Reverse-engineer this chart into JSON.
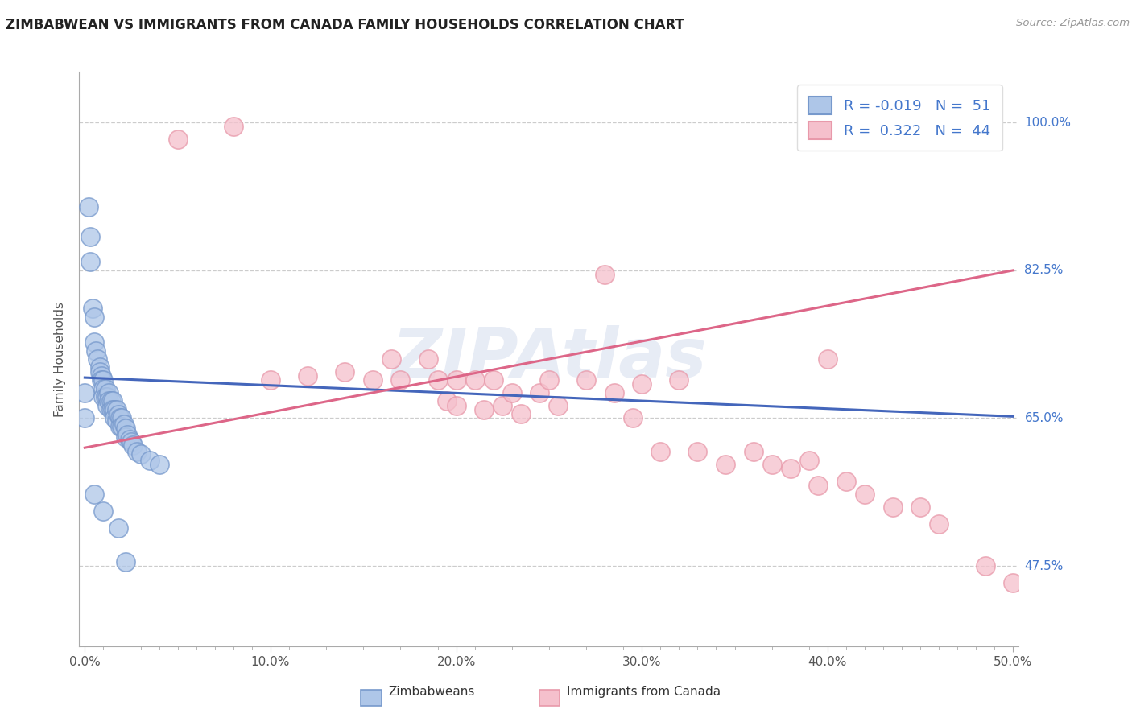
{
  "title": "ZIMBABWEAN VS IMMIGRANTS FROM CANADA FAMILY HOUSEHOLDS CORRELATION CHART",
  "source_text": "Source: ZipAtlas.com",
  "ylabel": "Family Households",
  "xlim": [
    -0.003,
    0.503
  ],
  "ylim": [
    0.38,
    1.06
  ],
  "xtick_labels": [
    "0.0%",
    "",
    "",
    "",
    "",
    "",
    "",
    "",
    "",
    "",
    "10.0%",
    "",
    "",
    "",
    "",
    "",
    "",
    "",
    "",
    "",
    "20.0%",
    "",
    "",
    "",
    "",
    "",
    "",
    "",
    "",
    "",
    "30.0%",
    "",
    "",
    "",
    "",
    "",
    "",
    "",
    "",
    "",
    "40.0%",
    "",
    "",
    "",
    "",
    "",
    "",
    "",
    "",
    "",
    "50.0%"
  ],
  "xtick_values": [
    0.0,
    0.01,
    0.02,
    0.03,
    0.04,
    0.05,
    0.06,
    0.07,
    0.08,
    0.09,
    0.1,
    0.11,
    0.12,
    0.13,
    0.14,
    0.15,
    0.16,
    0.17,
    0.18,
    0.19,
    0.2,
    0.21,
    0.22,
    0.23,
    0.24,
    0.25,
    0.26,
    0.27,
    0.28,
    0.29,
    0.3,
    0.31,
    0.32,
    0.33,
    0.34,
    0.35,
    0.36,
    0.37,
    0.38,
    0.39,
    0.4,
    0.41,
    0.42,
    0.43,
    0.44,
    0.45,
    0.46,
    0.47,
    0.48,
    0.49,
    0.5
  ],
  "xtick_major_labels": [
    "0.0%",
    "10.0%",
    "20.0%",
    "30.0%",
    "40.0%",
    "50.0%"
  ],
  "xtick_major_values": [
    0.0,
    0.1,
    0.2,
    0.3,
    0.4,
    0.5
  ],
  "ytick_labels": [
    "47.5%",
    "65.0%",
    "82.5%",
    "100.0%"
  ],
  "ytick_values": [
    0.475,
    0.65,
    0.825,
    1.0
  ],
  "grid_color": "#cccccc",
  "blue_dot_face": "#aec6e8",
  "blue_dot_edge": "#7799cc",
  "pink_dot_face": "#f5c0cc",
  "pink_dot_edge": "#e899aa",
  "blue_line_color": "#4466bb",
  "pink_line_color": "#dd6688",
  "label_color": "#4477cc",
  "legend_R1": "-0.019",
  "legend_N1": "51",
  "legend_R2": "0.322",
  "legend_N2": "44",
  "watermark": "ZIPAtlas",
  "watermark_color": "#aabbdd",
  "blue_x": [
    0.0,
    0.0,
    0.002,
    0.003,
    0.003,
    0.004,
    0.005,
    0.005,
    0.006,
    0.007,
    0.008,
    0.008,
    0.009,
    0.009,
    0.01,
    0.01,
    0.01,
    0.011,
    0.011,
    0.012,
    0.012,
    0.013,
    0.013,
    0.014,
    0.014,
    0.015,
    0.015,
    0.016,
    0.016,
    0.017,
    0.017,
    0.018,
    0.019,
    0.019,
    0.02,
    0.02,
    0.021,
    0.022,
    0.022,
    0.023,
    0.024,
    0.025,
    0.026,
    0.028,
    0.03,
    0.035,
    0.04,
    0.005,
    0.01,
    0.018,
    0.022
  ],
  "blue_y": [
    0.68,
    0.65,
    0.9,
    0.865,
    0.835,
    0.78,
    0.77,
    0.74,
    0.73,
    0.72,
    0.71,
    0.705,
    0.7,
    0.695,
    0.695,
    0.685,
    0.675,
    0.685,
    0.675,
    0.675,
    0.665,
    0.68,
    0.67,
    0.67,
    0.66,
    0.67,
    0.66,
    0.66,
    0.65,
    0.66,
    0.648,
    0.654,
    0.65,
    0.64,
    0.65,
    0.64,
    0.643,
    0.638,
    0.628,
    0.63,
    0.625,
    0.622,
    0.618,
    0.61,
    0.608,
    0.6,
    0.595,
    0.56,
    0.54,
    0.52,
    0.48
  ],
  "pink_x": [
    0.05,
    0.08,
    0.1,
    0.12,
    0.14,
    0.155,
    0.165,
    0.17,
    0.185,
    0.19,
    0.195,
    0.2,
    0.2,
    0.21,
    0.215,
    0.22,
    0.225,
    0.23,
    0.235,
    0.245,
    0.25,
    0.255,
    0.27,
    0.28,
    0.285,
    0.295,
    0.3,
    0.31,
    0.32,
    0.33,
    0.345,
    0.36,
    0.37,
    0.38,
    0.39,
    0.395,
    0.4,
    0.41,
    0.42,
    0.435,
    0.45,
    0.46,
    0.485,
    0.5
  ],
  "pink_y": [
    0.98,
    0.995,
    0.695,
    0.7,
    0.705,
    0.695,
    0.72,
    0.695,
    0.72,
    0.695,
    0.67,
    0.695,
    0.665,
    0.695,
    0.66,
    0.695,
    0.665,
    0.68,
    0.655,
    0.68,
    0.695,
    0.665,
    0.695,
    0.82,
    0.68,
    0.65,
    0.69,
    0.61,
    0.695,
    0.61,
    0.595,
    0.61,
    0.595,
    0.59,
    0.6,
    0.57,
    0.72,
    0.575,
    0.56,
    0.545,
    0.545,
    0.525,
    0.475,
    0.455
  ],
  "blue_trend_x": [
    0.0,
    0.5
  ],
  "blue_trend_y": [
    0.698,
    0.652
  ],
  "pink_trend_x": [
    0.0,
    0.5
  ],
  "pink_trend_y": [
    0.615,
    0.825
  ],
  "bottom_label1": "Zimbabweans",
  "bottom_label2": "Immigrants from Canada",
  "figsize": [
    14.06,
    8.92
  ],
  "dpi": 100
}
